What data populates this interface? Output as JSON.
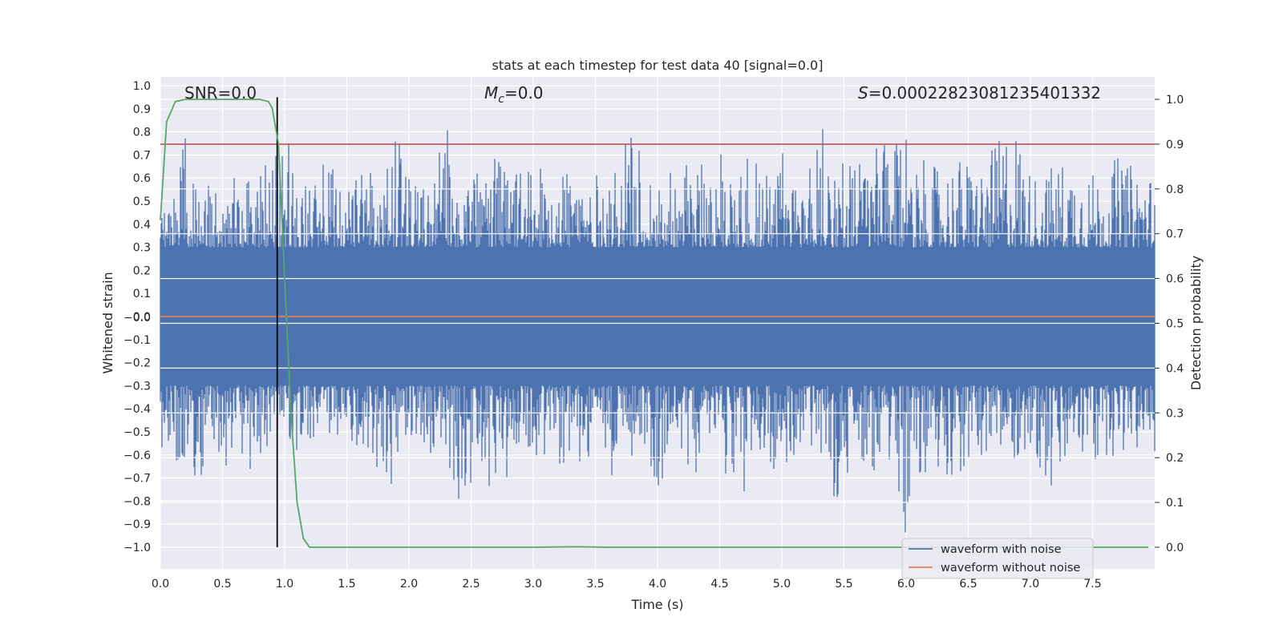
{
  "chart_data": {
    "type": "line",
    "title": "stats at each timestep for test data 40 [signal=0.0]",
    "xlabel": "Time (s)",
    "ylabel": "Whitened strain",
    "ylabel_right": "Detection probability",
    "xlim": [
      0.0,
      8.0
    ],
    "ylim": [
      -1.09,
      1.06
    ],
    "ylim_right": [
      -0.05,
      1.05
    ],
    "grid": true,
    "x_ticks": [
      "0.0",
      "0.5",
      "1.0",
      "1.5",
      "2.0",
      "2.5",
      "3.0",
      "3.5",
      "4.0",
      "4.5",
      "5.0",
      "5.5",
      "6.0",
      "6.5",
      "7.0",
      "7.5"
    ],
    "y_ticks": [
      "1.0",
      "0.9",
      "0.8",
      "0.7",
      "0.6",
      "0.5",
      "0.4",
      "0.3",
      "0.2",
      "0.1",
      "0.0",
      "−0.0",
      "−0.1",
      "−0.2",
      "−0.3",
      "−0.4",
      "−0.5",
      "−0.6",
      "−0.7",
      "−0.8",
      "−0.9",
      "−1.0"
    ],
    "y_tick_values": [
      1.0,
      0.9,
      0.8,
      0.7,
      0.6,
      0.5,
      0.4,
      0.3,
      0.2,
      0.1,
      0.0,
      -0.0,
      -0.1,
      -0.2,
      -0.3,
      -0.4,
      -0.5,
      -0.6,
      -0.7,
      -0.8,
      -0.9,
      -1.0
    ],
    "y_right_ticks": [
      "1.0",
      "0.9",
      "0.8",
      "0.7",
      "0.6",
      "0.5",
      "0.4",
      "0.3",
      "0.2",
      "0.1",
      "0.0"
    ],
    "y_right_tick_values": [
      1.0,
      0.9,
      0.8,
      0.7,
      0.6,
      0.5,
      0.4,
      0.3,
      0.2,
      0.1,
      0.0
    ],
    "series": [
      {
        "name": "waveform with noise",
        "color": "#4c72b0",
        "axis": "left",
        "envelope_upper": [
          0.45,
          0.6,
          0.79,
          0.62,
          0.56,
          0.55,
          0.79,
          0.6,
          0.6,
          0.73,
          0.95,
          0.55,
          0.6,
          0.69,
          0.66,
          0.7,
          0.6,
          0.67,
          0.6,
          0.8,
          0.6,
          0.6,
          0.62,
          0.84,
          0.6,
          0.62,
          0.65,
          0.7,
          0.66,
          0.67,
          0.6,
          0.75,
          0.68,
          0.7,
          0.62,
          0.62,
          0.6,
          0.72,
          0.8,
          0.68,
          0.6,
          0.7,
          0.65,
          0.67,
          0.7,
          0.72,
          0.68,
          0.78,
          0.7,
          0.65,
          0.75,
          0.6,
          0.64,
          0.88,
          0.7,
          0.7,
          0.69,
          0.72,
          0.77,
          0.7,
          0.92,
          0.7,
          0.65,
          0.66,
          0.7,
          0.68,
          0.66,
          0.73,
          0.85,
          0.84,
          0.63,
          0.64,
          0.67,
          0.7,
          0.68,
          0.63,
          0.63,
          0.7,
          0.66,
          0.68,
          0.6
        ],
        "envelope_lower": [
          -0.65,
          -0.62,
          -0.66,
          -0.73,
          -0.62,
          -0.69,
          -0.56,
          -0.62,
          -0.8,
          -0.5,
          -0.63,
          -0.6,
          -0.55,
          -0.5,
          -0.6,
          -0.55,
          -0.7,
          -0.6,
          -0.97,
          -0.6,
          -0.5,
          -0.6,
          -0.68,
          -0.62,
          -0.8,
          -0.72,
          -0.7,
          -0.78,
          -0.69,
          -0.55,
          -0.62,
          -0.6,
          -0.65,
          -0.72,
          -0.6,
          -0.7,
          -0.72,
          -0.65,
          -0.6,
          -0.55,
          -0.78,
          -0.6,
          -0.6,
          -0.72,
          -0.55,
          -0.6,
          -0.8,
          -0.76,
          -0.6,
          -0.75,
          -0.6,
          -0.69,
          -0.6,
          -0.6,
          -0.86,
          -0.75,
          -0.6,
          -0.7,
          -0.72,
          -0.7,
          -1.0,
          -0.7,
          -0.66,
          -0.68,
          -0.7,
          -0.72,
          -0.6,
          -0.65,
          -0.65,
          -0.62,
          -0.6,
          -0.7,
          -0.85,
          -0.65,
          -0.6,
          -0.72,
          -0.6,
          -0.62,
          -0.6,
          -0.6,
          -0.62
        ]
      },
      {
        "name": "waveform without noise",
        "color": "#dd8452",
        "axis": "left",
        "x": [
          0.0,
          8.0
        ],
        "y": [
          0.0,
          0.0
        ]
      },
      {
        "color": "#55a868",
        "axis": "right",
        "x": [
          0.0,
          0.05,
          0.12,
          0.2,
          0.3,
          0.4,
          0.5,
          0.6,
          0.7,
          0.8,
          0.87,
          0.9,
          0.95,
          1.0,
          1.05,
          1.1,
          1.15,
          1.2,
          1.25,
          1.5,
          2.0,
          3.0,
          3.35,
          3.6,
          4.0,
          5.0,
          6.0,
          7.0,
          7.95
        ],
        "y": [
          0.73,
          0.95,
          0.995,
          1.0,
          1.0,
          1.0,
          1.0,
          1.0,
          1.0,
          1.0,
          0.995,
          0.98,
          0.9,
          0.6,
          0.3,
          0.1,
          0.02,
          0.0,
          0.0,
          0.0,
          0.0,
          0.0,
          0.001,
          0.0,
          0.0,
          0.0,
          0.0,
          0.0,
          0.0
        ]
      }
    ],
    "hlines": [
      {
        "axis": "right",
        "y": 0.9,
        "color": "#c44e52"
      }
    ],
    "vlines": [
      {
        "axis": "left",
        "x": 0.94,
        "ymin": -1.0,
        "ymax": 0.95,
        "color": "#000000"
      }
    ],
    "annotations": {
      "snr": "SNR=0.0",
      "mc_symbol": "M",
      "mc_sub": "c",
      "mc_value": "=0.0",
      "s_symbol": "S",
      "s_value": "=0.00022823081235401332"
    },
    "legend": {
      "placement": "lower-right",
      "entries": [
        "waveform with noise",
        "waveform without noise"
      ]
    }
  }
}
